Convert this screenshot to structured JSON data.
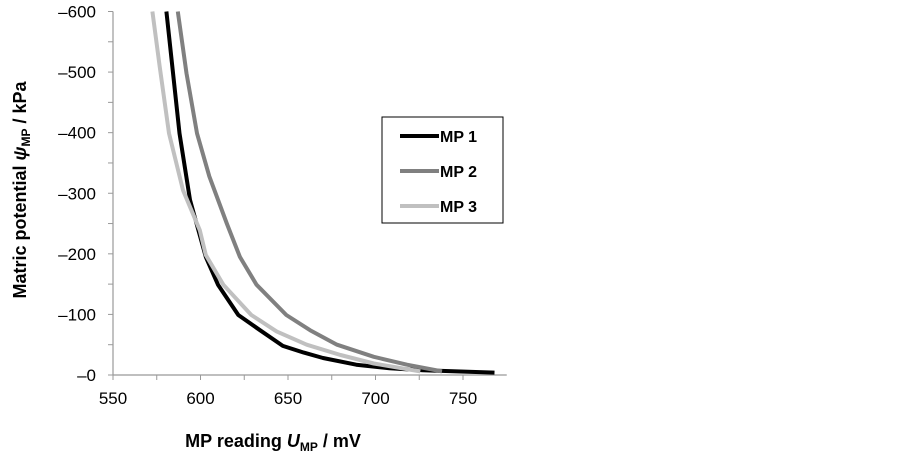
{
  "chart_data": {
    "type": "line",
    "title": "",
    "xlabel": {
      "prefix": "MP reading ",
      "symbol": "U",
      "subscript": "MP",
      "suffix": " / mV"
    },
    "ylabel": {
      "prefix": "Matric potential ",
      "symbol": "ψ",
      "subscript": "MP",
      "suffix": " / kPa"
    },
    "xlim": [
      550,
      775
    ],
    "ylim": [
      0,
      -600
    ],
    "x_ticks": [
      550,
      600,
      650,
      700,
      750
    ],
    "x_tick_labels": [
      "550",
      "600",
      "650",
      "700",
      "750"
    ],
    "y_ticks": [
      0,
      -100,
      -200,
      -300,
      -400,
      -500,
      -600
    ],
    "y_tick_labels": [
      "–0",
      "–100",
      "–200",
      "–300",
      "–400",
      "–500",
      "–600"
    ],
    "grid": false,
    "legend_position": "center-right",
    "series": [
      {
        "name": "MP 1",
        "color": "#000000",
        "x": [
          580.5,
          588,
          594,
          603,
          610,
          621.6,
          634,
          647,
          659,
          670,
          689,
          708,
          727,
          768
        ],
        "y": [
          -600,
          -399,
          -289,
          -195,
          -149,
          -99,
          -74,
          -48,
          -37,
          -28,
          -17,
          -11,
          -8,
          -4
        ]
      },
      {
        "name": "MP 2",
        "color": "#808080",
        "x": [
          587,
          592,
          598,
          605,
          615,
          622.5,
          632,
          649,
          662.6,
          678,
          699,
          718,
          738
        ],
        "y": [
          -600,
          -498,
          -399,
          -328,
          -250,
          -195,
          -149,
          -99,
          -74,
          -50,
          -30,
          -17,
          -6
        ]
      },
      {
        "name": "MP 3",
        "color": "#c0c0c0",
        "x": [
          572.5,
          576.7,
          582,
          590,
          599.6,
          603,
          613,
          629,
          643.5,
          660.7,
          680,
          699,
          725.6
        ],
        "y": [
          -600,
          -509,
          -399,
          -305,
          -239,
          -198,
          -149,
          -99,
          -72,
          -50,
          -33,
          -19,
          -6
        ]
      }
    ]
  }
}
